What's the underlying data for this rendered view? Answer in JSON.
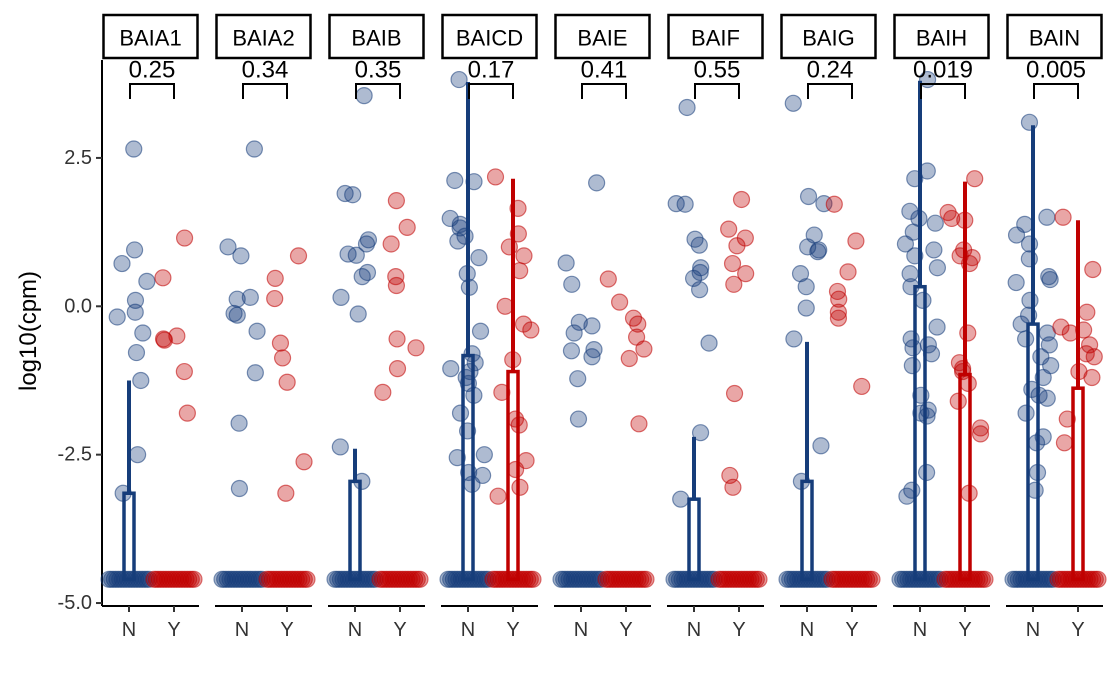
{
  "chart_data": {
    "type": "scatter",
    "ylabel": "log10(cpm)",
    "xlabel": "",
    "ylim": [
      -5.05,
      4.15
    ],
    "y_ticks": [
      {
        "value": 2.5,
        "label": "2.5"
      },
      {
        "value": 0.0,
        "label": "0.0"
      },
      {
        "value": -2.5,
        "label": "-2.5"
      },
      {
        "value": -5.0,
        "label": "-5.0"
      }
    ],
    "groups": [
      "N",
      "Y"
    ],
    "group_colors": {
      "N": "#163d7a",
      "Y": "#c00000"
    },
    "grid": false,
    "legend": "none",
    "panels": [
      {
        "name": "BAIA1",
        "p_value": "0.25",
        "summary": {
          "N": {
            "bar": -3.15,
            "upper": -1.25
          },
          "Y": null
        },
        "N_points": [
          0.95,
          0.72,
          2.65,
          0.42,
          0.1,
          -0.1,
          -0.18,
          -0.45,
          -0.78,
          -1.25,
          -2.5,
          -3.15
        ],
        "Y_points": [
          1.15,
          0.48,
          -0.5,
          -0.57,
          -0.55,
          -1.1,
          -1.8
        ]
      },
      {
        "name": "BAIA2",
        "p_value": "0.34",
        "summary": {
          "N": null,
          "Y": null
        },
        "N_points": [
          2.65,
          1.0,
          0.85,
          0.15,
          0.12,
          -0.12,
          -0.15,
          -0.42,
          -1.12,
          -1.97,
          -3.07
        ],
        "Y_points": [
          0.85,
          0.47,
          0.13,
          -0.62,
          -0.87,
          -1.28,
          -2.62,
          -3.15
        ]
      },
      {
        "name": "BAIB",
        "p_value": "0.35",
        "summary": {
          "N": {
            "bar": -2.95,
            "upper": -2.4
          },
          "Y": null
        },
        "N_points": [
          3.55,
          1.9,
          1.88,
          1.12,
          1.05,
          0.88,
          0.86,
          0.57,
          0.5,
          0.15,
          -0.13,
          -2.37,
          -2.95
        ],
        "Y_points": [
          1.78,
          1.33,
          1.05,
          0.5,
          0.35,
          -0.55,
          -0.7,
          -1.05,
          -1.45
        ]
      },
      {
        "name": "BAICD",
        "p_value": "0.17",
        "summary": {
          "N": {
            "bar": -0.83,
            "upper": 3.78
          },
          "Y": {
            "bar": -1.1,
            "upper": 2.15
          }
        },
        "N_points": [
          3.82,
          2.12,
          2.1,
          1.48,
          1.38,
          1.32,
          1.18,
          1.1,
          0.82,
          0.55,
          0.32,
          -0.42,
          -0.8,
          -0.95,
          -1.05,
          -1.1,
          -1.2,
          -1.3,
          -1.5,
          -1.8,
          -2.1,
          -2.5,
          -2.55,
          -2.8,
          -2.85,
          -3.0
        ],
        "Y_points": [
          2.18,
          1.65,
          1.22,
          1.0,
          0.85,
          0.6,
          0.0,
          -0.3,
          -0.4,
          -0.9,
          -1.45,
          -1.9,
          -2.0,
          -2.6,
          -2.75,
          -3.05,
          -3.2
        ]
      },
      {
        "name": "BAIE",
        "p_value": "0.41",
        "summary": {
          "N": null,
          "Y": null
        },
        "N_points": [
          2.08,
          0.73,
          0.37,
          -0.27,
          -0.33,
          -0.45,
          -0.73,
          -0.75,
          -0.85,
          -1.22,
          -1.9
        ],
        "Y_points": [
          0.46,
          0.07,
          -0.2,
          -0.3,
          -0.52,
          -0.72,
          -0.88,
          -1.98
        ]
      },
      {
        "name": "BAIF",
        "p_value": "0.55",
        "summary": {
          "N": {
            "bar": -3.25,
            "upper": -2.2
          },
          "Y": null
        },
        "N_points": [
          3.35,
          1.73,
          1.72,
          1.13,
          1.03,
          0.65,
          0.57,
          0.47,
          0.28,
          -0.62,
          -2.13,
          -3.25
        ],
        "Y_points": [
          1.8,
          1.3,
          1.15,
          1.02,
          0.72,
          0.55,
          0.37,
          -1.47,
          -2.85,
          -3.05
        ]
      },
      {
        "name": "BAIG",
        "p_value": "0.24",
        "summary": {
          "N": {
            "bar": -2.95,
            "upper": -0.6
          },
          "Y": null
        },
        "N_points": [
          3.42,
          1.85,
          1.73,
          1.2,
          1.0,
          0.95,
          0.92,
          0.55,
          0.33,
          -0.03,
          -0.55,
          -2.35,
          -2.95
        ],
        "Y_points": [
          1.72,
          1.1,
          0.58,
          0.25,
          0.12,
          -0.1,
          -0.2,
          -1.35
        ]
      },
      {
        "name": "BAIH",
        "p_value": "0.019",
        "summary": {
          "N": {
            "bar": 0.33,
            "upper": 3.8
          },
          "Y": {
            "bar": -1.15,
            "upper": 2.1
          }
        },
        "N_points": [
          3.82,
          2.28,
          2.15,
          1.6,
          1.48,
          1.4,
          1.25,
          1.05,
          0.95,
          0.85,
          0.65,
          0.55,
          0.33,
          0.1,
          -0.35,
          -0.55,
          -0.65,
          -0.7,
          -0.8,
          -1.0,
          -1.5,
          -1.75,
          -1.8,
          -1.85,
          -2.8,
          -3.1,
          -3.2
        ],
        "Y_points": [
          2.15,
          1.58,
          1.48,
          1.45,
          0.95,
          0.85,
          0.82,
          0.72,
          -0.45,
          -0.95,
          -1.05,
          -1.1,
          -1.3,
          -1.6,
          -2.05,
          -2.15,
          -3.15
        ]
      },
      {
        "name": "BAIN",
        "p_value": "0.005",
        "summary": {
          "N": {
            "bar": -0.3,
            "upper": 3.05
          },
          "Y": {
            "bar": -1.38,
            "upper": 1.45
          }
        },
        "N_points": [
          3.1,
          1.5,
          1.38,
          1.2,
          1.05,
          0.8,
          0.5,
          0.45,
          0.4,
          0.1,
          -0.15,
          -0.3,
          -0.45,
          -0.55,
          -0.65,
          -0.85,
          -1.0,
          -1.2,
          -1.4,
          -1.5,
          -1.55,
          -1.8,
          -2.2,
          -2.3,
          -2.8,
          -3.1
        ],
        "Y_points": [
          1.5,
          0.62,
          -0.1,
          -0.35,
          -0.4,
          -0.45,
          -0.65,
          -0.8,
          -0.85,
          -1.1,
          -1.2,
          -1.9,
          -2.3
        ]
      }
    ]
  }
}
